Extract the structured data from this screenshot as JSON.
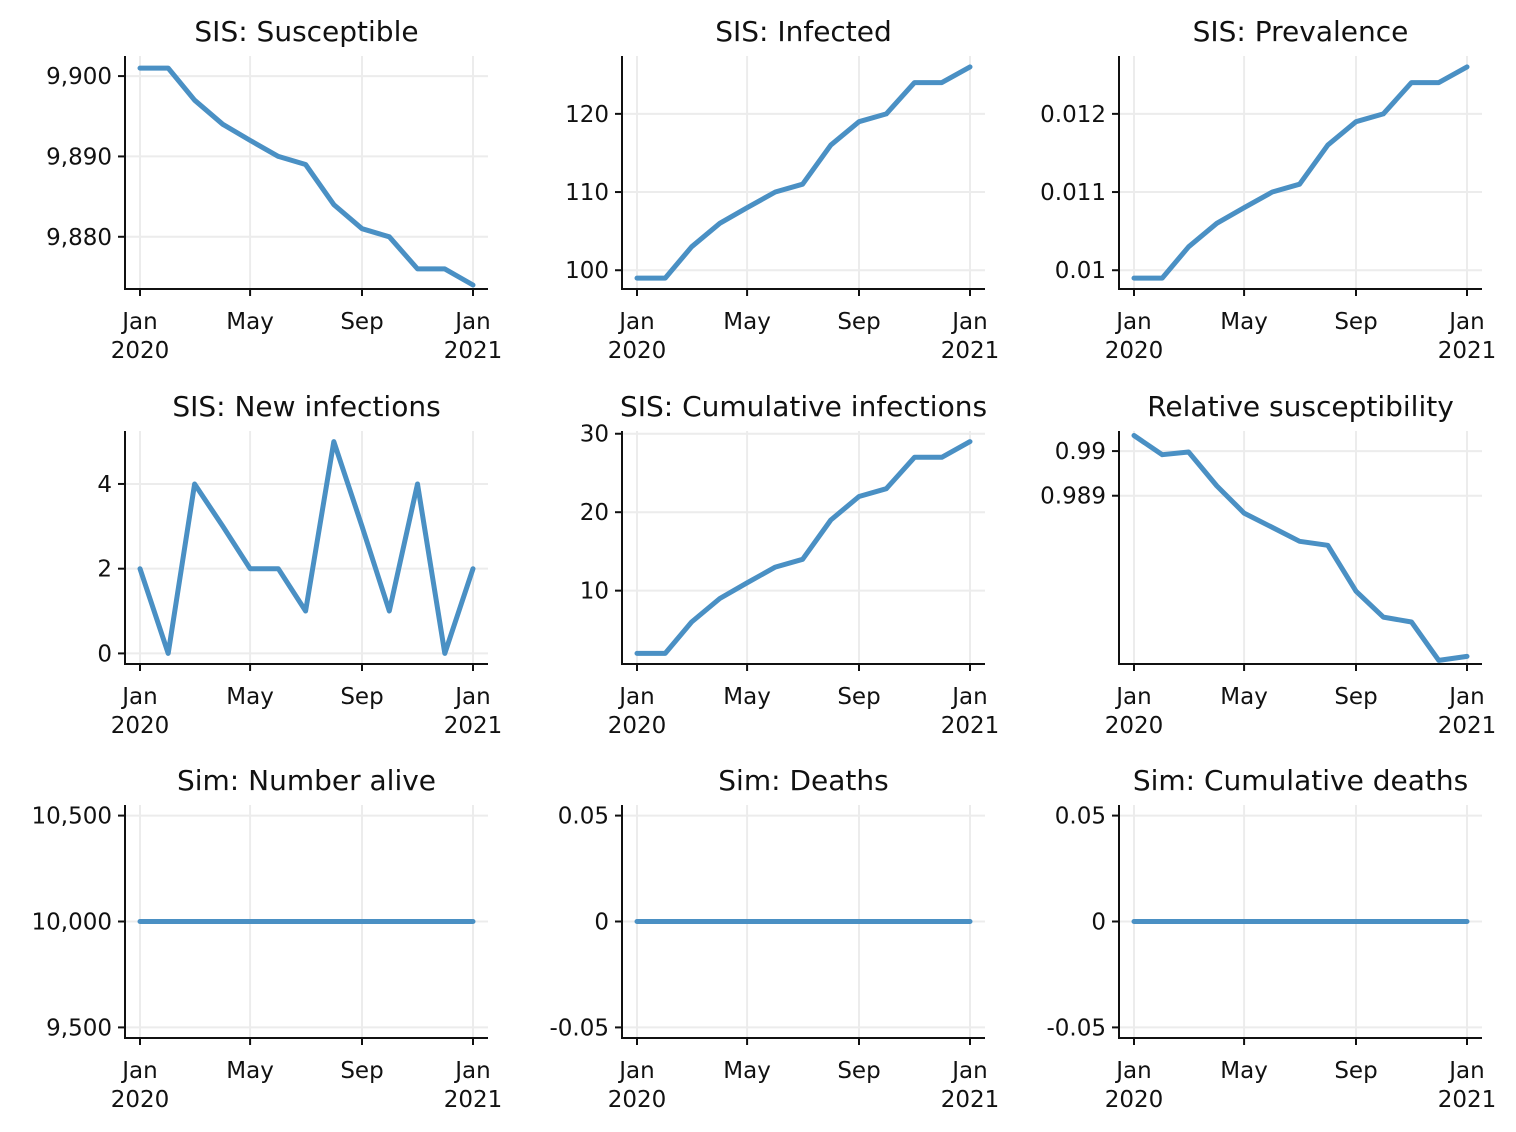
{
  "style": {
    "line_color": "#4a90c4",
    "grid_color": "#ececec",
    "axis_color": "#111111"
  },
  "chart_data": [
    {
      "type": "line",
      "title": "SIS: Susceptible",
      "x": [
        "2020-01-01",
        "2020-02-01",
        "2020-03-01",
        "2020-04-01",
        "2020-05-01",
        "2020-06-01",
        "2020-07-01",
        "2020-08-01",
        "2020-09-01",
        "2020-10-01",
        "2020-11-01",
        "2020-12-01",
        "2021-01-01"
      ],
      "x_ticks": [
        {
          "date": "2020-01-01",
          "label": "Jan",
          "sub": "2020"
        },
        {
          "date": "2020-05-01",
          "label": "May",
          "sub": ""
        },
        {
          "date": "2020-09-01",
          "label": "Sep",
          "sub": ""
        },
        {
          "date": "2021-01-01",
          "label": "Jan",
          "sub": "2021"
        }
      ],
      "values": [
        9901,
        9901,
        9897,
        9894,
        9892,
        9890,
        9889,
        9884,
        9881,
        9880,
        9876,
        9876,
        9874
      ],
      "ylim": [
        9873.5,
        9902.5
      ],
      "y_ticks": [
        {
          "value": 9880,
          "label": "9,880"
        },
        {
          "value": 9890,
          "label": "9,890"
        },
        {
          "value": 9900,
          "label": "9,900"
        }
      ],
      "grid": true
    },
    {
      "type": "line",
      "title": "SIS: Infected",
      "x": [
        "2020-01-01",
        "2020-02-01",
        "2020-03-01",
        "2020-04-01",
        "2020-05-01",
        "2020-06-01",
        "2020-07-01",
        "2020-08-01",
        "2020-09-01",
        "2020-10-01",
        "2020-11-01",
        "2020-12-01",
        "2021-01-01"
      ],
      "x_ticks": [
        {
          "date": "2020-01-01",
          "label": "Jan",
          "sub": "2020"
        },
        {
          "date": "2020-05-01",
          "label": "May",
          "sub": ""
        },
        {
          "date": "2020-09-01",
          "label": "Sep",
          "sub": ""
        },
        {
          "date": "2021-01-01",
          "label": "Jan",
          "sub": "2021"
        }
      ],
      "values": [
        99,
        99,
        103,
        106,
        108,
        110,
        111,
        116,
        119,
        120,
        124,
        124,
        126
      ],
      "ylim": [
        97.6,
        127.4
      ],
      "y_ticks": [
        {
          "value": 100,
          "label": "100"
        },
        {
          "value": 110,
          "label": "110"
        },
        {
          "value": 120,
          "label": "120"
        }
      ],
      "grid": true
    },
    {
      "type": "line",
      "title": "SIS: Prevalence",
      "x": [
        "2020-01-01",
        "2020-02-01",
        "2020-03-01",
        "2020-04-01",
        "2020-05-01",
        "2020-06-01",
        "2020-07-01",
        "2020-08-01",
        "2020-09-01",
        "2020-10-01",
        "2020-11-01",
        "2020-12-01",
        "2021-01-01"
      ],
      "x_ticks": [
        {
          "date": "2020-01-01",
          "label": "Jan",
          "sub": "2020"
        },
        {
          "date": "2020-05-01",
          "label": "May",
          "sub": ""
        },
        {
          "date": "2020-09-01",
          "label": "Sep",
          "sub": ""
        },
        {
          "date": "2021-01-01",
          "label": "Jan",
          "sub": "2021"
        }
      ],
      "values": [
        0.0099,
        0.0099,
        0.0103,
        0.0106,
        0.0108,
        0.011,
        0.0111,
        0.0116,
        0.0119,
        0.012,
        0.0124,
        0.0124,
        0.0126
      ],
      "ylim": [
        0.00976,
        0.01274
      ],
      "y_ticks": [
        {
          "value": 0.01,
          "label": "0.01"
        },
        {
          "value": 0.011,
          "label": "0.011"
        },
        {
          "value": 0.012,
          "label": "0.012"
        }
      ],
      "grid": true
    },
    {
      "type": "line",
      "title": "SIS: New infections",
      "x": [
        "2020-01-01",
        "2020-02-01",
        "2020-03-01",
        "2020-04-01",
        "2020-05-01",
        "2020-06-01",
        "2020-07-01",
        "2020-08-01",
        "2020-09-01",
        "2020-10-01",
        "2020-11-01",
        "2020-12-01",
        "2021-01-01"
      ],
      "x_ticks": [
        {
          "date": "2020-01-01",
          "label": "Jan",
          "sub": "2020"
        },
        {
          "date": "2020-05-01",
          "label": "May",
          "sub": ""
        },
        {
          "date": "2020-09-01",
          "label": "Sep",
          "sub": ""
        },
        {
          "date": "2021-01-01",
          "label": "Jan",
          "sub": "2021"
        }
      ],
      "values": [
        2,
        0,
        4,
        3,
        2,
        2,
        1,
        5,
        3,
        1,
        4,
        0,
        2
      ],
      "ylim": [
        -0.25,
        5.25
      ],
      "y_ticks": [
        {
          "value": 0,
          "label": "0"
        },
        {
          "value": 2,
          "label": "2"
        },
        {
          "value": 4,
          "label": "4"
        }
      ],
      "grid": true
    },
    {
      "type": "line",
      "title": "SIS: Cumulative infections",
      "x": [
        "2020-01-01",
        "2020-02-01",
        "2020-03-01",
        "2020-04-01",
        "2020-05-01",
        "2020-06-01",
        "2020-07-01",
        "2020-08-01",
        "2020-09-01",
        "2020-10-01",
        "2020-11-01",
        "2020-12-01",
        "2021-01-01"
      ],
      "x_ticks": [
        {
          "date": "2020-01-01",
          "label": "Jan",
          "sub": "2020"
        },
        {
          "date": "2020-05-01",
          "label": "May",
          "sub": ""
        },
        {
          "date": "2020-09-01",
          "label": "Sep",
          "sub": ""
        },
        {
          "date": "2021-01-01",
          "label": "Jan",
          "sub": "2021"
        }
      ],
      "values": [
        2,
        2,
        6,
        9,
        11,
        13,
        14,
        19,
        22,
        23,
        27,
        27,
        29
      ],
      "ylim": [
        0.65,
        30.35
      ],
      "y_ticks": [
        {
          "value": 10,
          "label": "10"
        },
        {
          "value": 20,
          "label": "20"
        },
        {
          "value": 30,
          "label": "30"
        }
      ],
      "grid": true
    },
    {
      "type": "line",
      "title": "Relative susceptibility",
      "x": [
        "2020-01-01",
        "2020-02-01",
        "2020-03-01",
        "2020-04-01",
        "2020-05-01",
        "2020-06-01",
        "2020-07-01",
        "2020-08-01",
        "2020-09-01",
        "2020-10-01",
        "2020-11-01",
        "2020-12-01",
        "2021-01-01"
      ],
      "x_ticks": [
        {
          "date": "2020-01-01",
          "label": "Jan",
          "sub": "2020"
        },
        {
          "date": "2020-05-01",
          "label": "May",
          "sub": ""
        },
        {
          "date": "2020-09-01",
          "label": "Sep",
          "sub": ""
        },
        {
          "date": "2021-01-01",
          "label": "Jan",
          "sub": "2021"
        }
      ],
      "values": [
        0.99035,
        0.98992,
        0.98998,
        0.98922,
        0.98861,
        0.98829,
        0.98798,
        0.98789,
        0.98686,
        0.98628,
        0.98617,
        0.98531,
        0.9854
      ],
      "ylim": [
        0.98523,
        0.99045
      ],
      "y_ticks": [
        {
          "value": 0.989,
          "label": "0.989"
        },
        {
          "value": 0.99,
          "label": "0.99"
        }
      ],
      "grid": true
    },
    {
      "type": "line",
      "title": "Sim: Number alive",
      "x": [
        "2020-01-01",
        "2020-02-01",
        "2020-03-01",
        "2020-04-01",
        "2020-05-01",
        "2020-06-01",
        "2020-07-01",
        "2020-08-01",
        "2020-09-01",
        "2020-10-01",
        "2020-11-01",
        "2020-12-01",
        "2021-01-01"
      ],
      "x_ticks": [
        {
          "date": "2020-01-01",
          "label": "Jan",
          "sub": "2020"
        },
        {
          "date": "2020-05-01",
          "label": "May",
          "sub": ""
        },
        {
          "date": "2020-09-01",
          "label": "Sep",
          "sub": ""
        },
        {
          "date": "2021-01-01",
          "label": "Jan",
          "sub": "2021"
        }
      ],
      "values": [
        10000,
        10000,
        10000,
        10000,
        10000,
        10000,
        10000,
        10000,
        10000,
        10000,
        10000,
        10000,
        10000
      ],
      "ylim": [
        9450,
        10550
      ],
      "y_ticks": [
        {
          "value": 9500,
          "label": "9,500"
        },
        {
          "value": 10000,
          "label": "10,000"
        },
        {
          "value": 10500,
          "label": "10,500"
        }
      ],
      "grid": true
    },
    {
      "type": "line",
      "title": "Sim: Deaths",
      "x": [
        "2020-01-01",
        "2020-02-01",
        "2020-03-01",
        "2020-04-01",
        "2020-05-01",
        "2020-06-01",
        "2020-07-01",
        "2020-08-01",
        "2020-09-01",
        "2020-10-01",
        "2020-11-01",
        "2020-12-01",
        "2021-01-01"
      ],
      "x_ticks": [
        {
          "date": "2020-01-01",
          "label": "Jan",
          "sub": "2020"
        },
        {
          "date": "2020-05-01",
          "label": "May",
          "sub": ""
        },
        {
          "date": "2020-09-01",
          "label": "Sep",
          "sub": ""
        },
        {
          "date": "2021-01-01",
          "label": "Jan",
          "sub": "2021"
        }
      ],
      "values": [
        0,
        0,
        0,
        0,
        0,
        0,
        0,
        0,
        0,
        0,
        0,
        0,
        0
      ],
      "ylim": [
        -0.055,
        0.055
      ],
      "y_ticks": [
        {
          "value": -0.05,
          "label": "-0.05"
        },
        {
          "value": 0,
          "label": "0"
        },
        {
          "value": 0.05,
          "label": "0.05"
        }
      ],
      "grid": true
    },
    {
      "type": "line",
      "title": "Sim: Cumulative deaths",
      "x": [
        "2020-01-01",
        "2020-02-01",
        "2020-03-01",
        "2020-04-01",
        "2020-05-01",
        "2020-06-01",
        "2020-07-01",
        "2020-08-01",
        "2020-09-01",
        "2020-10-01",
        "2020-11-01",
        "2020-12-01",
        "2021-01-01"
      ],
      "x_ticks": [
        {
          "date": "2020-01-01",
          "label": "Jan",
          "sub": "2020"
        },
        {
          "date": "2020-05-01",
          "label": "May",
          "sub": ""
        },
        {
          "date": "2020-09-01",
          "label": "Sep",
          "sub": ""
        },
        {
          "date": "2021-01-01",
          "label": "Jan",
          "sub": "2021"
        }
      ],
      "values": [
        0,
        0,
        0,
        0,
        0,
        0,
        0,
        0,
        0,
        0,
        0,
        0,
        0
      ],
      "ylim": [
        -0.055,
        0.055
      ],
      "y_ticks": [
        {
          "value": -0.05,
          "label": "-0.05"
        },
        {
          "value": 0,
          "label": "0"
        },
        {
          "value": 0.05,
          "label": "0.05"
        }
      ],
      "grid": true
    }
  ]
}
